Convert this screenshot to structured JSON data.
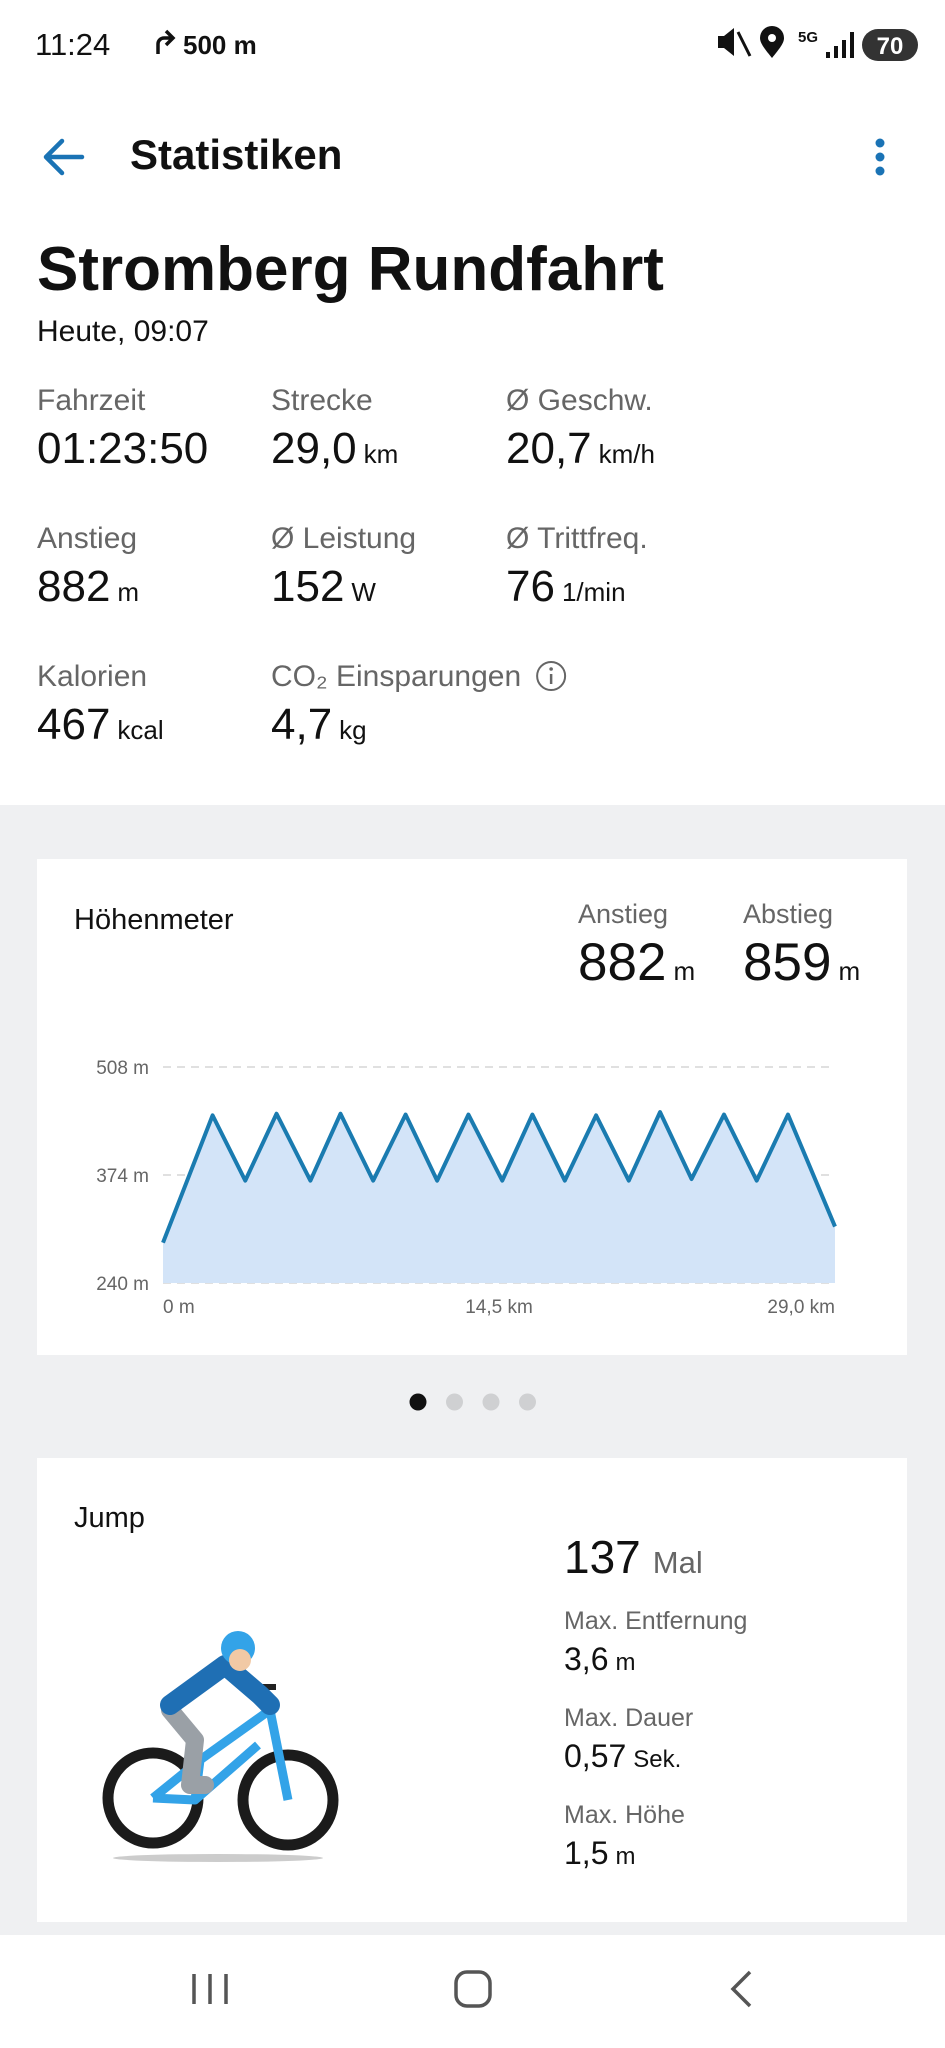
{
  "status_bar": {
    "time": "11:24",
    "navigation_distance": "500 m",
    "network": "5G",
    "battery": "70"
  },
  "header": {
    "title": "Statistiken"
  },
  "ride": {
    "name": "Stromberg Rundfahrt",
    "date": "Heute, 09:07"
  },
  "stats": [
    {
      "label": "Fahrzeit",
      "value": "01:23:50"
    },
    {
      "label": "Strecke",
      "value": "29,0",
      "unit": "km"
    },
    {
      "label": "Ø Geschw.",
      "value": "20,7",
      "unit": "km/h"
    },
    {
      "label": "Anstieg",
      "value": "882",
      "unit": "m"
    },
    {
      "label": "Ø Leistung",
      "value": "152",
      "unit": "W"
    },
    {
      "label": "Ø Trittfreq.",
      "value": "76",
      "unit": "1/min"
    },
    {
      "label": "Kalorien",
      "value": "467",
      "unit": "kcal"
    },
    {
      "label": "CO₂ Einsparungen",
      "value": "4,7",
      "unit": "kg"
    }
  ],
  "elevation_summary": [
    {
      "label": "Anstieg",
      "value": "882",
      "unit": "m"
    },
    {
      "label": "Abstieg",
      "value": "859",
      "unit": "m"
    }
  ],
  "chart_data": {
    "type": "line",
    "title": "Höhenmeter",
    "x": [
      0,
      2.14,
      3.55,
      4.9,
      6.36,
      7.66,
      9.07,
      10.47,
      11.83,
      13.18,
      14.64,
      15.94,
      17.34,
      18.69,
      20.1,
      21.45,
      22.81,
      24.21,
      25.62,
      26.97,
      29.0
    ],
    "values": [
      290,
      448,
      367,
      450,
      367,
      450,
      367,
      449,
      367,
      449,
      367,
      449,
      367,
      448,
      367,
      452,
      369,
      449,
      367,
      449,
      310
    ],
    "color": "#1a7bb0",
    "fill_color": "#d3e4f8",
    "xlim": [
      0,
      29
    ],
    "xticks": [
      {
        "value": 0,
        "label": "0 m"
      },
      {
        "value": 14.5,
        "label": "14,5 km"
      },
      {
        "value": 29,
        "label": "29,0 km"
      }
    ],
    "ylim": [
      240,
      508
    ],
    "yticks": [
      {
        "value": 240,
        "label": "240 m"
      },
      {
        "value": 374,
        "label": "374 m"
      },
      {
        "value": 508,
        "label": "508 m"
      }
    ],
    "grid": true
  },
  "pagination": {
    "count": 4,
    "active": 0
  },
  "jump": {
    "title": "Jump",
    "count": "137",
    "count_unit": "Mal",
    "metrics": [
      {
        "label": "Max. Entfernung",
        "value": "3,6",
        "unit": "m"
      },
      {
        "label": "Max. Dauer",
        "value": "0,57",
        "unit": "Sek."
      },
      {
        "label": "Max. Höhe",
        "value": "1,5",
        "unit": "m"
      }
    ]
  }
}
